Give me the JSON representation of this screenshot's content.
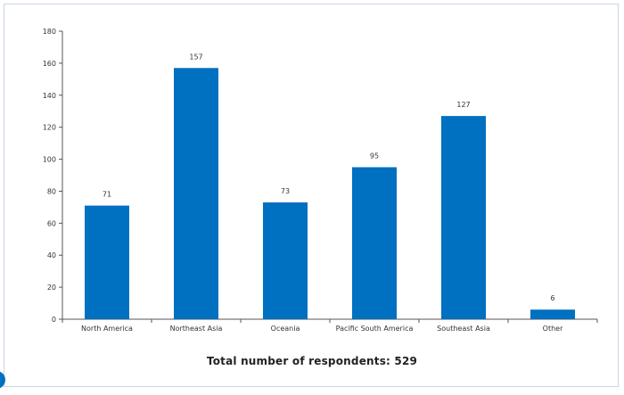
{
  "colors": {
    "bar": "#0070c0",
    "axis": "#555555",
    "border": "#c9d4e6",
    "dot": "#0070c0"
  },
  "caption": "Total number of respondents: 529",
  "chart_data": {
    "type": "bar",
    "categories": [
      "North America",
      "Northeast Asia",
      "Oceania",
      "Pacific South America",
      "Southeast Asia",
      "Other"
    ],
    "values": [
      71,
      157,
      73,
      95,
      127,
      6
    ],
    "data_labels": [
      "71",
      "157",
      "73",
      "95",
      "127",
      "6"
    ],
    "title": "",
    "xlabel": "",
    "ylabel": "",
    "ylim": [
      0,
      180
    ],
    "yticks": [
      0,
      20,
      40,
      60,
      80,
      100,
      120,
      140,
      160,
      180
    ],
    "grid": false,
    "legend": "none"
  }
}
